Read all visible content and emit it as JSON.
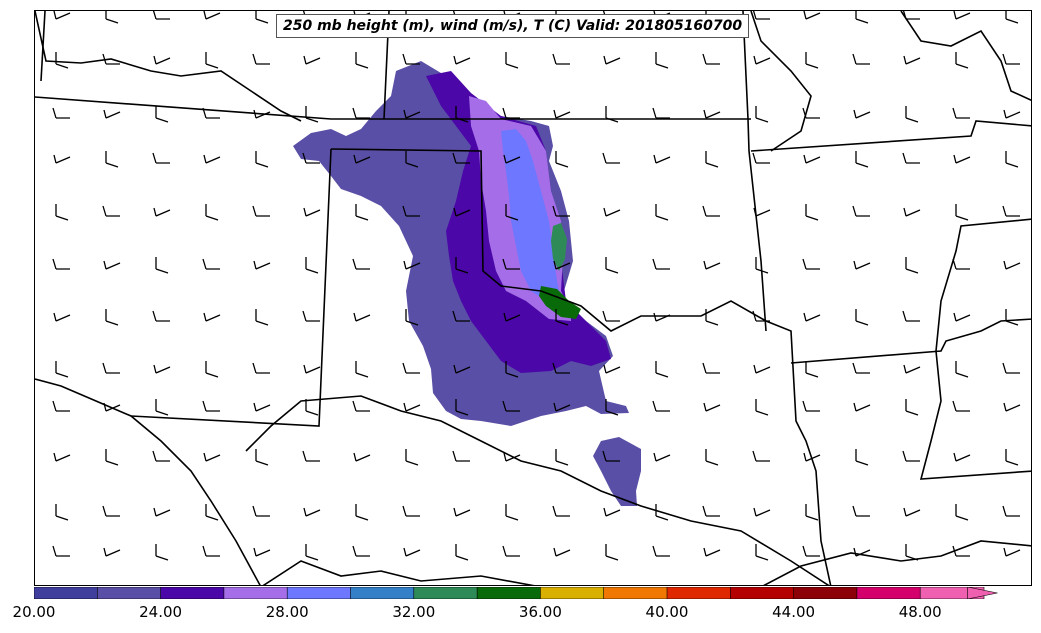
{
  "title": "250 mb height (m), wind (m/s), T (C) Valid: 201805160700",
  "colorbar": {
    "colors": [
      "#3f3e9c",
      "#5a4fa6",
      "#4b07a8",
      "#a56ee8",
      "#6e77ff",
      "#3380c8",
      "#2e8b57",
      "#086a08",
      "#dab000",
      "#f07800",
      "#e02800",
      "#b40000",
      "#8c0008",
      "#d4006c",
      "#f060b0"
    ],
    "tick_labels": [
      "20.00",
      "24.00",
      "28.00",
      "32.00",
      "36.00",
      "40.00",
      "44.00",
      "48.00"
    ],
    "extend": "max"
  },
  "map": {
    "line_color": "#000000",
    "barb_color": "#000000",
    "fill_light": "#5a4fa6",
    "fill_dark": "#4b07a8",
    "fill_lilac": "#a56ee8",
    "fill_blue": "#6e77ff",
    "fill_green": "#2e8b57",
    "fill_darkgreen": "#086a08"
  }
}
